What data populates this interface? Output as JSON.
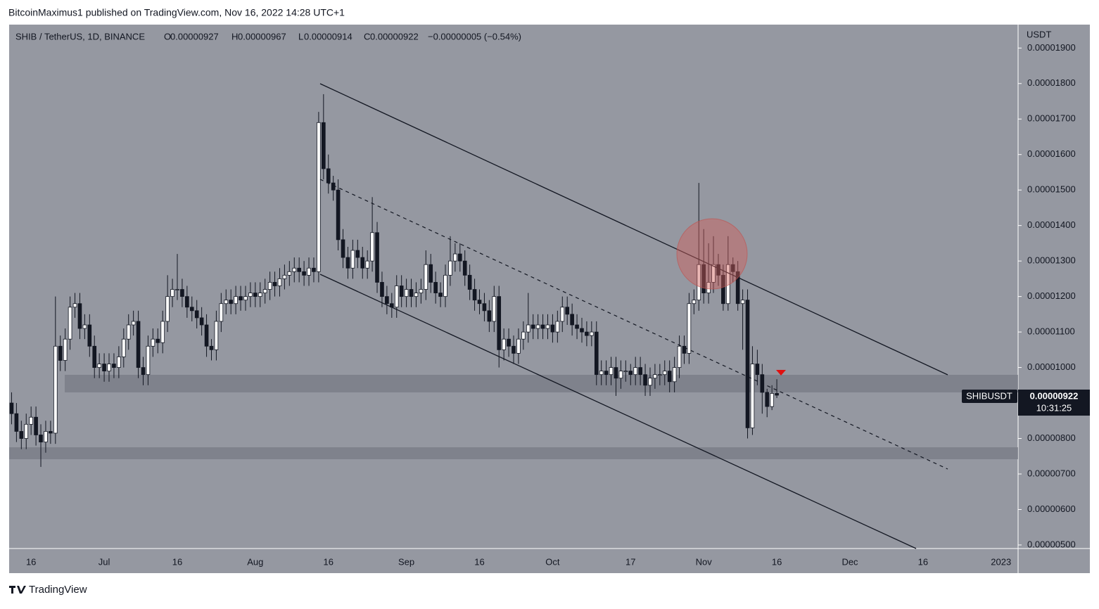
{
  "header": "BitcoinMaximus1 published on TradingView.com, Nov 16, 2022 14:28 UTC+1",
  "footer": "TradingView",
  "chart_data": {
    "type": "candlestick",
    "symbol": "SHIB / TetherUS, 1D, BINANCE",
    "ohlc_labels": [
      "O",
      "H",
      "L",
      "C"
    ],
    "change": "−0.00000005 (−0.54%)",
    "y_axis_label": "USDT",
    "price_tag": "SHIBUSDT",
    "countdown": "10:31:25",
    "categories": [
      null,
      null,
      null,
      null,
      "16",
      null,
      null,
      null,
      null,
      null,
      null,
      null,
      null,
      null,
      null,
      null,
      null,
      null,
      null,
      "Jul",
      null,
      null,
      null,
      null,
      null,
      null,
      null,
      null,
      null,
      null,
      null,
      null,
      null,
      null,
      "16",
      null,
      null,
      null,
      null,
      null,
      null,
      null,
      null,
      null,
      null,
      null,
      null,
      null,
      null,
      null,
      "Aug",
      null,
      null,
      null,
      null,
      null,
      null,
      null,
      null,
      null,
      null,
      null,
      null,
      null,
      null,
      "16",
      null,
      null,
      null,
      null,
      null,
      null,
      null,
      null,
      null,
      null,
      null,
      null,
      null,
      null,
      null,
      "Sep",
      null,
      null,
      null,
      null,
      null,
      null,
      null,
      null,
      null,
      null,
      null,
      null,
      null,
      null,
      "16",
      null,
      null,
      null,
      null,
      null,
      null,
      null,
      null,
      null,
      null,
      null,
      null,
      null,
      null,
      "Oct",
      null,
      null,
      null,
      null,
      null,
      null,
      null,
      null,
      null,
      null,
      null,
      null,
      null,
      null,
      null,
      "17",
      null,
      null,
      null,
      null,
      null,
      null,
      null,
      null,
      null,
      null,
      null,
      null,
      null,
      null,
      "Nov",
      null,
      null,
      null,
      null,
      null,
      null,
      null,
      null,
      null,
      null,
      null,
      null,
      null,
      null,
      "16",
      null,
      null,
      null,
      null,
      null,
      null,
      null,
      null,
      null,
      null,
      null,
      null,
      null,
      null,
      "Dec",
      null,
      null,
      null,
      null,
      null,
      null,
      null,
      null,
      null,
      null,
      null,
      null,
      null,
      null,
      "16",
      null,
      null,
      null,
      null,
      null,
      null,
      null,
      null,
      null,
      null,
      null,
      null,
      null,
      null,
      null,
      "2023",
      null,
      null,
      null
    ],
    "open": [
      9e-06,
      8.7e-06,
      8.2e-06,
      8e-06,
      8.4e-06,
      8.6e-06,
      8.1e-06,
      7.9e-06,
      8.2e-06,
      8.15e-06,
      1.06e-05,
      1.02e-05,
      1.08e-05,
      1.17e-05,
      1.18e-05,
      1.11e-05,
      1.12e-05,
      1.06e-05,
      1e-05,
      1.01e-05,
      9.9e-06,
      1.01e-05,
      1e-05,
      1.03e-05,
      1.08e-05,
      1.12e-05,
      1.13e-05,
      1e-05,
      9.8e-06,
      1.06e-05,
      1.08e-05,
      1.07e-05,
      1.13e-05,
      1.2e-05,
      1.22e-05,
      1.22e-05,
      1.2e-05,
      1.17e-05,
      1.16e-05,
      1.14e-05,
      1.12e-05,
      1.06e-05,
      1.05e-05,
      1.13e-05,
      1.18e-05,
      1.19e-05,
      1.18e-05,
      1.2e-05,
      1.19e-05,
      1.2e-05,
      1.21e-05,
      1.2e-05,
      1.21e-05,
      1.22e-05,
      1.24e-05,
      1.23e-05,
      1.25e-05,
      1.26e-05,
      1.27e-05,
      1.28e-05,
      1.27e-05,
      1.26e-05,
      1.28e-05,
      1.27e-05,
      1.69e-05,
      1.56e-05,
      1.52e-05,
      1.5e-05,
      1.36e-05,
      1.31e-05,
      1.28e-05,
      1.33e-05,
      1.31e-05,
      1.28e-05,
      1.3e-05,
      1.38e-05,
      1.24e-05,
      1.2e-05,
      1.18e-05,
      1.17e-05,
      1.23e-05,
      1.2e-05,
      1.22e-05,
      1.2e-05,
      1.21e-05,
      1.22e-05,
      1.29e-05,
      1.24e-05,
      1.21e-05,
      1.2e-05,
      1.26e-05,
      1.3e-05,
      1.32e-05,
      1.3e-05,
      1.26e-05,
      1.22e-05,
      1.19e-05,
      1.18e-05,
      1.16e-05,
      1.13e-05,
      1.2e-05,
      1.05e-05,
      1.08e-05,
      1.06e-05,
      1.04e-05,
      1.08e-05,
      1.1e-05,
      1.12e-05,
      1.11e-05,
      1.12e-05,
      1.11e-05,
      1.12e-05,
      1.1e-05,
      1.13e-05,
      1.17e-05,
      1.15e-05,
      1.12e-05,
      1.11e-05,
      1.1e-05,
      1.09e-05,
      1.1e-05,
      9.8e-06,
      9.9e-06,
      9.8e-06,
      1e-05,
      9.7e-06,
      9.9e-06,
      9.9e-06,
      9.8e-06,
      1e-05,
      9.8e-06,
      9.5e-06,
      9.7e-06,
      9.8e-06,
      9.8e-06,
      9.9e-06,
      9.6e-06,
      1e-05,
      1.06e-05,
      1.04e-05,
      1.18e-05,
      1.19e-05,
      1.29e-05,
      1.21e-05,
      1.24e-05,
      1.29e-05,
      1.26e-05,
      1.18e-05,
      1.29e-05,
      1.27e-05,
      1.18e-05,
      1.19e-05,
      8.3e-06,
      1.01e-05,
      9.8e-06,
      9.3e-06,
      8.9e-06,
      9.27e-06,
      null,
      null,
      null,
      null,
      null,
      null,
      null,
      null,
      null,
      null,
      null,
      null,
      null,
      null,
      null,
      null,
      null,
      null,
      null,
      null,
      null,
      null,
      null,
      null,
      null,
      null,
      null,
      null,
      null,
      null,
      null,
      null,
      null,
      null,
      null,
      null,
      null,
      null,
      null,
      null,
      null,
      null,
      null,
      null,
      null,
      null,
      null,
      null,
      null
    ],
    "high": [
      9.3e-06,
      9e-06,
      8.5e-06,
      8.7e-06,
      8.9e-06,
      8.9e-06,
      8.4e-06,
      8.5e-06,
      8.5e-06,
      1.2e-05,
      1.09e-05,
      1.11e-05,
      1.2e-05,
      1.21e-05,
      1.21e-05,
      1.15e-05,
      1.15e-05,
      1.09e-05,
      1.04e-05,
      1.04e-05,
      1.04e-05,
      1.04e-05,
      1.06e-05,
      1.11e-05,
      1.15e-05,
      1.16e-05,
      1.16e-05,
      1.03e-05,
      1.09e-05,
      1.11e-05,
      1.11e-05,
      1.16e-05,
      1.26e-05,
      1.25e-05,
      1.32e-05,
      1.25e-05,
      1.23e-05,
      1.2e-05,
      1.19e-05,
      1.17e-05,
      1.15e-05,
      1.08e-05,
      1.16e-05,
      1.21e-05,
      1.22e-05,
      1.22e-05,
      1.23e-05,
      1.23e-05,
      1.23e-05,
      1.24e-05,
      1.24e-05,
      1.24e-05,
      1.25e-05,
      1.27e-05,
      1.27e-05,
      1.28e-05,
      1.29e-05,
      1.3e-05,
      1.31e-05,
      1.31e-05,
      1.3e-05,
      1.31e-05,
      1.31e-05,
      1.72e-05,
      1.77e-05,
      1.6e-05,
      1.54e-05,
      1.53e-05,
      1.39e-05,
      1.34e-05,
      1.36e-05,
      1.36e-05,
      1.34e-05,
      1.33e-05,
      1.48e-05,
      1.41e-05,
      1.27e-05,
      1.23e-05,
      1.21e-05,
      1.26e-05,
      1.26e-05,
      1.25e-05,
      1.25e-05,
      1.24e-05,
      1.25e-05,
      1.33e-05,
      1.32e-05,
      1.27e-05,
      1.24e-05,
      1.29e-05,
      1.37e-05,
      1.35e-05,
      1.35e-05,
      1.33e-05,
      1.29e-05,
      1.25e-05,
      1.22e-05,
      1.21e-05,
      1.19e-05,
      1.23e-05,
      1.23e-05,
      1.11e-05,
      1.11e-05,
      1.09e-05,
      1.11e-05,
      1.13e-05,
      1.21e-05,
      1.15e-05,
      1.15e-05,
      1.15e-05,
      1.15e-05,
      1.15e-05,
      1.16e-05,
      1.2e-05,
      1.2e-05,
      1.18e-05,
      1.15e-05,
      1.14e-05,
      1.13e-05,
      1.13e-05,
      1.13e-05,
      1.02e-05,
      1.02e-05,
      1.03e-05,
      1.03e-05,
      1.02e-05,
      1.02e-05,
      1.01e-05,
      1.03e-05,
      1.03e-05,
      1.01e-05,
      1e-05,
      1.01e-05,
      1.01e-05,
      1.02e-05,
      1.02e-05,
      1.03e-05,
      1.09e-05,
      1.09e-05,
      1.21e-05,
      1.22e-05,
      1.52e-05,
      1.39e-05,
      1.35e-05,
      1.37e-05,
      1.32e-05,
      1.29e-05,
      1.37e-05,
      1.31e-05,
      1.3e-05,
      1.22e-05,
      1.22e-05,
      1.06e-05,
      1.05e-05,
      1.01e-05,
      9.4e-06,
      9.5e-06,
      9.67e-06,
      null,
      null,
      null,
      null,
      null,
      null,
      null,
      null,
      null,
      null,
      null,
      null,
      null,
      null,
      null,
      null,
      null,
      null,
      null,
      null,
      null,
      null,
      null,
      null,
      null,
      null,
      null,
      null,
      null,
      null,
      null,
      null,
      null,
      null,
      null,
      null,
      null,
      null,
      null,
      null,
      null,
      null,
      null,
      null,
      null,
      null,
      null,
      null,
      null
    ],
    "low": [
      8.4e-06,
      7.9e-06,
      7.7e-06,
      7.7e-06,
      8.1e-06,
      7.8e-06,
      7.2e-06,
      7.6e-06,
      7.85e-06,
      7.85e-06,
      9.9e-06,
      9.9e-06,
      1.05e-05,
      1.14e-05,
      1.08e-05,
      1.08e-05,
      1.03e-05,
      9.7e-06,
      9.7e-06,
      9.6e-06,
      9.6e-06,
      9.7e-06,
      9.7e-06,
      1e-05,
      1.05e-05,
      1.09e-05,
      9.7e-06,
      9.5e-06,
      9.5e-06,
      1.03e-05,
      1.04e-05,
      1.04e-05,
      1.1e-05,
      1.17e-05,
      1.19e-05,
      1.17e-05,
      1.14e-05,
      1.13e-05,
      1.11e-05,
      1.09e-05,
      1.03e-05,
      1.02e-05,
      1.02e-05,
      1.1e-05,
      1.15e-05,
      1.15e-05,
      1.15e-05,
      1.16e-05,
      1.16e-05,
      1.17e-05,
      1.17e-05,
      1.17e-05,
      1.18e-05,
      1.19e-05,
      1.2e-05,
      1.2e-05,
      1.22e-05,
      1.23e-05,
      1.24e-05,
      1.24e-05,
      1.23e-05,
      1.23e-05,
      1.24e-05,
      1.24e-05,
      1.53e-05,
      1.49e-05,
      1.47e-05,
      1.33e-05,
      1.28e-05,
      1.25e-05,
      1.25e-05,
      1.28e-05,
      1.25e-05,
      1.25e-05,
      1.27e-05,
      1.21e-05,
      1.17e-05,
      1.15e-05,
      1.14e-05,
      1.14e-05,
      1.17e-05,
      1.17e-05,
      1.17e-05,
      1.17e-05,
      1.18e-05,
      1.19e-05,
      1.21e-05,
      1.18e-05,
      1.17e-05,
      1.17e-05,
      1.23e-05,
      1.27e-05,
      1.27e-05,
      1.23e-05,
      1.19e-05,
      1.16e-05,
      1.15e-05,
      1.13e-05,
      1.1e-05,
      1.1e-05,
      1e-05,
      1.02e-05,
      1.03e-05,
      1.01e-05,
      1.01e-05,
      1.05e-05,
      1.07e-05,
      1.08e-05,
      1.08e-05,
      1.08e-05,
      1.08e-05,
      1.07e-05,
      1.07e-05,
      1.1e-05,
      1.12e-05,
      1.09e-05,
      1.08e-05,
      1.07e-05,
      1.06e-05,
      1.06e-05,
      9.5e-06,
      9.5e-06,
      9.5e-06,
      9.5e-06,
      9.2e-06,
      9.4e-06,
      9.6e-06,
      9.5e-06,
      9.5e-06,
      9.5e-06,
      9.2e-06,
      9.2e-06,
      9.4e-06,
      9.5e-06,
      9.5e-06,
      9.3e-06,
      9.3e-06,
      9.7e-06,
      1.01e-05,
      1.01e-05,
      1.15e-05,
      1.16e-05,
      1.18e-05,
      1.18e-05,
      1.21e-05,
      1.23e-05,
      1.16e-05,
      1.16e-05,
      1.24e-05,
      1.16e-05,
      1.05e-05,
      8e-06,
      8.1e-06,
      9.5e-06,
      8.7e-06,
      8.6e-06,
      8.8e-06,
      9.14e-06,
      null,
      null,
      null,
      null,
      null,
      null,
      null,
      null,
      null,
      null,
      null,
      null,
      null,
      null,
      null,
      null,
      null,
      null,
      null,
      null,
      null,
      null,
      null,
      null,
      null,
      null,
      null,
      null,
      null,
      null,
      null,
      null,
      null,
      null,
      null,
      null,
      null,
      null,
      null,
      null,
      null,
      null,
      null,
      null,
      null,
      null,
      null,
      null,
      null
    ],
    "close": [
      8.7e-06,
      8.2e-06,
      8e-06,
      8.4e-06,
      8.6e-06,
      8.1e-06,
      7.9e-06,
      8.2e-06,
      8.15e-06,
      1.06e-05,
      1.02e-05,
      1.08e-05,
      1.17e-05,
      1.18e-05,
      1.11e-05,
      1.12e-05,
      1.06e-05,
      1e-05,
      1.01e-05,
      9.9e-06,
      1.01e-05,
      1e-05,
      1.03e-05,
      1.08e-05,
      1.12e-05,
      1.13e-05,
      1e-05,
      9.8e-06,
      1.06e-05,
      1.08e-05,
      1.07e-05,
      1.13e-05,
      1.2e-05,
      1.22e-05,
      1.22e-05,
      1.2e-05,
      1.17e-05,
      1.16e-05,
      1.14e-05,
      1.12e-05,
      1.06e-05,
      1.05e-05,
      1.13e-05,
      1.18e-05,
      1.19e-05,
      1.18e-05,
      1.2e-05,
      1.19e-05,
      1.2e-05,
      1.21e-05,
      1.2e-05,
      1.21e-05,
      1.22e-05,
      1.24e-05,
      1.23e-05,
      1.25e-05,
      1.26e-05,
      1.27e-05,
      1.28e-05,
      1.27e-05,
      1.26e-05,
      1.28e-05,
      1.27e-05,
      1.69e-05,
      1.56e-05,
      1.52e-05,
      1.5e-05,
      1.36e-05,
      1.31e-05,
      1.28e-05,
      1.33e-05,
      1.31e-05,
      1.28e-05,
      1.3e-05,
      1.38e-05,
      1.24e-05,
      1.2e-05,
      1.18e-05,
      1.17e-05,
      1.23e-05,
      1.2e-05,
      1.22e-05,
      1.2e-05,
      1.21e-05,
      1.22e-05,
      1.29e-05,
      1.24e-05,
      1.21e-05,
      1.2e-05,
      1.26e-05,
      1.3e-05,
      1.32e-05,
      1.3e-05,
      1.26e-05,
      1.22e-05,
      1.19e-05,
      1.18e-05,
      1.16e-05,
      1.13e-05,
      1.2e-05,
      1.05e-05,
      1.08e-05,
      1.06e-05,
      1.04e-05,
      1.08e-05,
      1.1e-05,
      1.12e-05,
      1.11e-05,
      1.12e-05,
      1.11e-05,
      1.12e-05,
      1.1e-05,
      1.13e-05,
      1.17e-05,
      1.15e-05,
      1.12e-05,
      1.11e-05,
      1.1e-05,
      1.09e-05,
      1.1e-05,
      9.8e-06,
      9.9e-06,
      9.8e-06,
      1e-05,
      9.7e-06,
      9.9e-06,
      9.9e-06,
      9.8e-06,
      1e-05,
      9.8e-06,
      9.5e-06,
      9.7e-06,
      9.8e-06,
      9.8e-06,
      9.9e-06,
      9.6e-06,
      1e-05,
      1.06e-05,
      1.04e-05,
      1.18e-05,
      1.19e-05,
      1.29e-05,
      1.21e-05,
      1.24e-05,
      1.29e-05,
      1.26e-05,
      1.18e-05,
      1.29e-05,
      1.27e-05,
      1.18e-05,
      1.19e-05,
      8.3e-06,
      1.01e-05,
      9.8e-06,
      9.3e-06,
      8.9e-06,
      9.27e-06,
      9.22e-06,
      null,
      null,
      null,
      null,
      null,
      null,
      null,
      null,
      null,
      null,
      null,
      null,
      null,
      null,
      null,
      null,
      null,
      null,
      null,
      null,
      null,
      null,
      null,
      null,
      null,
      null,
      null,
      null,
      null,
      null,
      null,
      null,
      null,
      null,
      null,
      null,
      null,
      null,
      null,
      null,
      null,
      null,
      null,
      null,
      null,
      null,
      null,
      null,
      null
    ],
    "ylim": [
      4.9e-06,
      1.966e-05
    ],
    "yticks": [
      {
        "value": 5e-06,
        "label": "0.00000500"
      },
      {
        "value": 6e-06,
        "label": "0.00000600"
      },
      {
        "value": 7e-06,
        "label": "0.00000700"
      },
      {
        "value": 8e-06,
        "label": "0.00000800"
      },
      {
        "value": 9e-06,
        "label": "0.00000900"
      },
      {
        "value": 1e-05,
        "label": "0.00001000"
      },
      {
        "value": 1.1e-05,
        "label": "0.00001100"
      },
      {
        "value": 1.2e-05,
        "label": "0.00001200"
      },
      {
        "value": 1.3e-05,
        "label": "0.00001300"
      },
      {
        "value": 1.4e-05,
        "label": "0.00001400"
      },
      {
        "value": 1.5e-05,
        "label": "0.00001500"
      },
      {
        "value": 1.6e-05,
        "label": "0.00001600"
      },
      {
        "value": 1.7e-05,
        "label": "0.00001700"
      },
      {
        "value": 1.8e-05,
        "label": "0.00001800"
      },
      {
        "value": 1.9e-05,
        "label": "0.00001900"
      }
    ],
    "grid": false,
    "up_color": "#ffffff",
    "down_color": "#131722"
  }
}
